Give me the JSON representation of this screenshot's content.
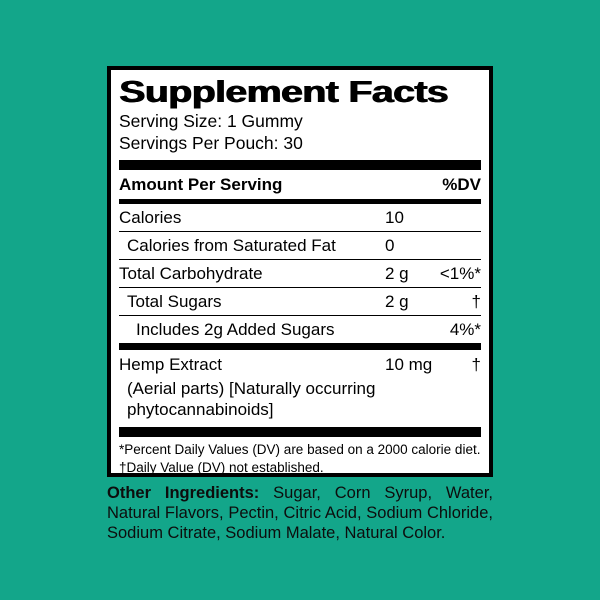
{
  "colors": {
    "background": "#13a68a",
    "panel_background": "#ffffff",
    "rule_and_text": "#000000"
  },
  "label": {
    "title": "Supplement Facts",
    "serving_size": "Serving Size: 1 Gummy",
    "servings_per_pouch": "Servings Per Pouch: 30",
    "header": {
      "amount": "Amount Per Serving",
      "dv": "%DV"
    },
    "rows": [
      {
        "name": "Calories",
        "amount": "10",
        "dv": ""
      },
      {
        "name": "Calories from Saturated Fat",
        "amount": "0",
        "dv": ""
      },
      {
        "name": "Total Carbohydrate",
        "amount": "2 g",
        "dv": "<1%*"
      },
      {
        "name": "Total Sugars",
        "amount": "2 g",
        "dv": "†"
      },
      {
        "name": "Includes 2g Added Sugars",
        "amount": "",
        "dv": "4%*"
      }
    ],
    "hemp": {
      "name": "Hemp Extract",
      "amount": "10 mg",
      "dv": "†",
      "description_lines": [
        "(Aerial parts) [Naturally occurring",
        "phytocannabinoids]"
      ]
    },
    "footnotes": [
      "*Percent Daily Values (DV) are based on a 2000 calorie diet.",
      "†Daily Value (DV) not established."
    ]
  },
  "other_ingredients": {
    "label": "Other Ingredients:",
    "text": "Sugar, Corn Syrup, Water, Natural Flavors, Pectin, Citric Acid, Sodium Chloride, Sodium Citrate, Sodium Malate, Natural Color."
  }
}
